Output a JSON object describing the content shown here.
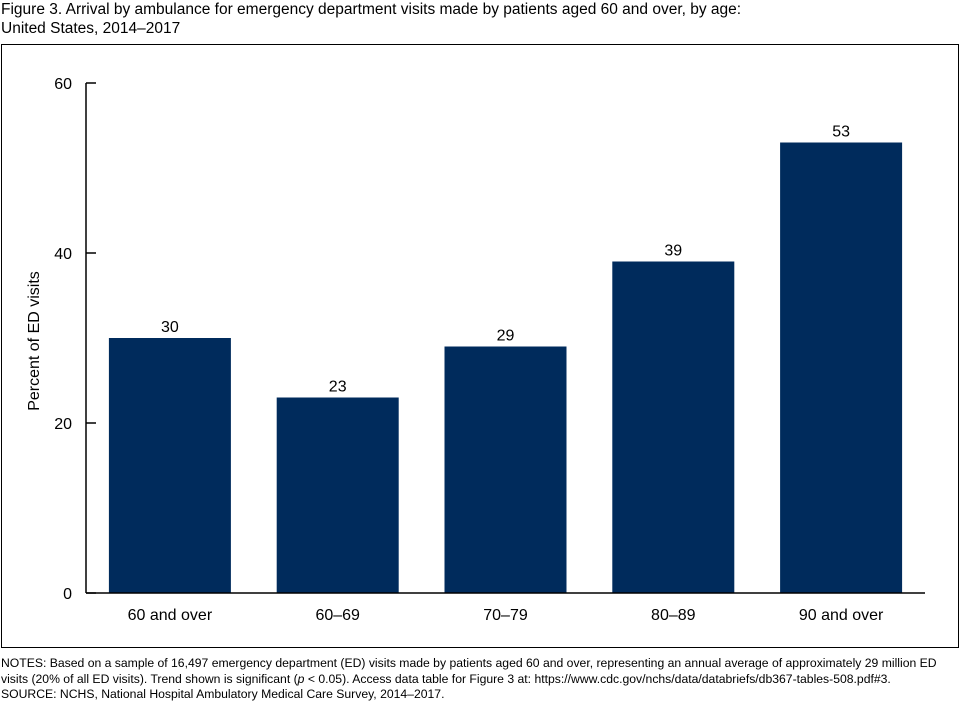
{
  "title_line1": "Figure 3. Arrival by ambulance for emergency department visits made by patients aged 60 and over, by age:",
  "title_line2": "United States, 2014–2017",
  "colors": {
    "bar": "#002b5c",
    "axis": "#000000"
  },
  "chart_data": {
    "type": "bar",
    "categories": [
      "60 and over",
      "60–69",
      "70–79",
      "80–89",
      "90 and over"
    ],
    "values": [
      30,
      23,
      29,
      39,
      53
    ],
    "data_labels": [
      "30",
      "23",
      "29",
      "39",
      "53"
    ],
    "title": "",
    "xlabel": "",
    "ylabel": "Percent of ED visits",
    "ylim": [
      0,
      60
    ],
    "yticks": [
      0,
      20,
      40,
      60
    ],
    "grid": false,
    "legend": "none"
  },
  "notes": {
    "notes_pre": "NOTES: Based on a sample of 16,497 emergency department (ED) visits made by patients aged 60 and over, representing an annual average of approximately 29 million ED visits (20% of all ED visits). Trend shown is significant (",
    "notes_p": "p",
    "notes_post": " < 0.05). Access data table for Figure 3 at: https://www.cdc.gov/nchs/data/databriefs/db367-tables-508.pdf#3.",
    "source": "SOURCE: NCHS, National Hospital Ambulatory Medical Care Survey, 2014–2017."
  }
}
